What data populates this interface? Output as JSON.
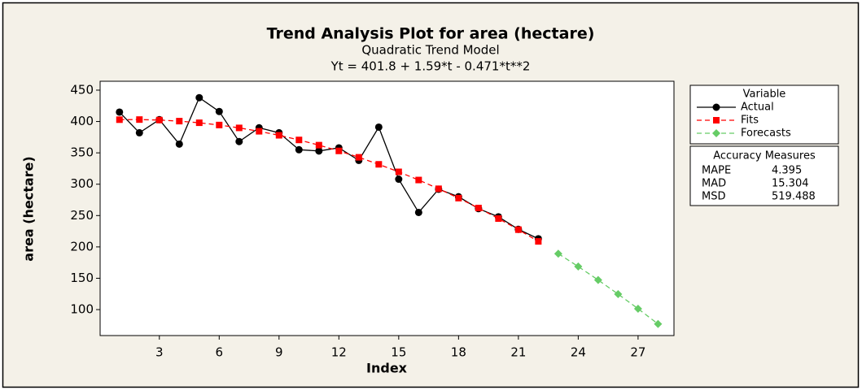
{
  "chart_data": {
    "type": "line",
    "title": "Trend Analysis Plot for area (hectare)",
    "subtitle": "Quadratic Trend Model",
    "equation": "Yt = 401.8 + 1.59*t - 0.471*t**2",
    "x_label": "Index",
    "y_label": "area (hectare)",
    "x": [
      1,
      2,
      3,
      4,
      5,
      6,
      7,
      8,
      9,
      10,
      11,
      12,
      13,
      14,
      15,
      16,
      17,
      18,
      19,
      20,
      21,
      22,
      23,
      24,
      25,
      26,
      27,
      28
    ],
    "series": [
      {
        "name": "Actual",
        "color": "#000000",
        "marker": "circle",
        "dashed": false,
        "values": [
          415,
          382,
          403,
          364,
          438,
          416,
          368,
          390,
          382,
          355,
          353,
          358,
          338,
          391,
          308,
          255,
          292,
          280,
          261,
          248,
          228,
          213,
          null,
          null,
          null,
          null,
          null,
          null
        ]
      },
      {
        "name": "Fits",
        "color": "#ff0000",
        "marker": "square",
        "dashed": true,
        "values": [
          402.9,
          403.1,
          402.3,
          400.6,
          398.0,
          394.4,
          389.8,
          384.4,
          378.0,
          370.6,
          362.3,
          353.1,
          342.9,
          331.7,
          319.7,
          306.7,
          292.7,
          277.8,
          262.0,
          245.2,
          227.5,
          208.8,
          null,
          null,
          null,
          null,
          null,
          null
        ]
      },
      {
        "name": "Forecasts",
        "color": "#66cc66",
        "marker": "diamond",
        "dashed": true,
        "values": [
          null,
          null,
          null,
          null,
          null,
          null,
          null,
          null,
          null,
          null,
          null,
          null,
          null,
          null,
          null,
          null,
          null,
          null,
          null,
          null,
          null,
          null,
          189.2,
          168.7,
          147.2,
          124.7,
          101.4,
          77.1
        ]
      }
    ],
    "legend_title": "Variable",
    "xlim": [
      0.03,
      28.8
    ],
    "xticks": [
      3,
      6,
      9,
      12,
      15,
      18,
      21,
      24,
      27
    ],
    "ylim": [
      58.6,
      464.2
    ],
    "yticks": [
      100,
      150,
      200,
      250,
      300,
      350,
      400,
      450
    ],
    "accuracy_measures": {
      "title": "Accuracy Measures",
      "rows": [
        {
          "name": "MAPE",
          "value": 4.395
        },
        {
          "name": "MAD",
          "value": 15.304
        },
        {
          "name": "MSD",
          "value": 519.488
        }
      ]
    }
  }
}
